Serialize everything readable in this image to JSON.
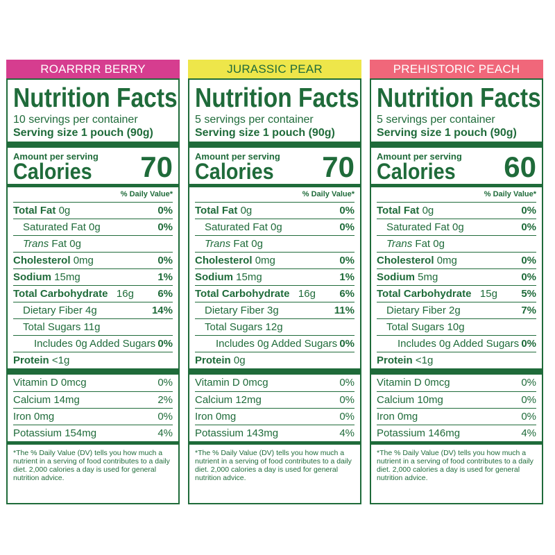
{
  "colors": {
    "green": "#1f6b3a",
    "berry": "#d63d8f",
    "pear": "#eee64a",
    "peach": "#f0677a"
  },
  "panels": [
    {
      "flavor": "ROARRRR BERRY",
      "title": "Nutrition Facts",
      "servings": "10 servings per container",
      "serving_size": "Serving size 1 pouch (90g)",
      "amount_per_serving": "Amount per serving",
      "calories_label": "Calories",
      "calories": "70",
      "dv_header": "% Daily Value*",
      "total_fat": {
        "label": "Total Fat",
        "amount": "0g",
        "dv": "0%"
      },
      "saturated_fat": {
        "label": "Saturated Fat 0g",
        "dv": "0%"
      },
      "trans_fat": {
        "label_italic": "Trans",
        "label_rest": " Fat 0g"
      },
      "cholesterol": {
        "label": "Cholesterol",
        "amount": "0mg",
        "dv": "0%"
      },
      "sodium": {
        "label": "Sodium",
        "amount": "15mg",
        "dv": "1%"
      },
      "total_carb": {
        "label": "Total Carbohydrate",
        "amount": "16g",
        "dv": "6%"
      },
      "fiber": {
        "label": "Dietary Fiber 4g",
        "dv": "14%"
      },
      "sugars": {
        "label": "Total Sugars 11g"
      },
      "added_sugars": {
        "label": "Includes 0g Added Sugars",
        "dv": "0%"
      },
      "protein": {
        "label": "Protein",
        "amount": "<1g"
      },
      "vitamin_d": {
        "label": "Vitamin D 0mcg",
        "dv": "0%"
      },
      "calcium": {
        "label": "Calcium 14mg",
        "dv": "2%"
      },
      "iron": {
        "label": "Iron 0mg",
        "dv": "0%"
      },
      "potassium": {
        "label": "Potassium 154mg",
        "dv": "4%"
      },
      "footnote": "*The % Daily Value (DV) tells you how much a nutrient in a serving of food contributes to a daily diet. 2,000 calories a day is used for general nutrition advice."
    },
    {
      "flavor": "JURASSIC PEAR",
      "title": "Nutrition Facts",
      "servings": "5 servings per container",
      "serving_size": "Serving size 1 pouch (90g)",
      "amount_per_serving": "Amount per serving",
      "calories_label": "Calories",
      "calories": "70",
      "dv_header": "% Daily Value*",
      "total_fat": {
        "label": "Total Fat",
        "amount": "0g",
        "dv": "0%"
      },
      "saturated_fat": {
        "label": "Saturated Fat 0g",
        "dv": "0%"
      },
      "trans_fat": {
        "label_italic": "Trans",
        "label_rest": " Fat 0g"
      },
      "cholesterol": {
        "label": "Cholesterol",
        "amount": "0mg",
        "dv": "0%"
      },
      "sodium": {
        "label": "Sodium",
        "amount": "15mg",
        "dv": "1%"
      },
      "total_carb": {
        "label": "Total Carbohydrate",
        "amount": "16g",
        "dv": "6%"
      },
      "fiber": {
        "label": "Dietary Fiber 3g",
        "dv": "11%"
      },
      "sugars": {
        "label": "Total Sugars 12g"
      },
      "added_sugars": {
        "label": "Includes 0g Added Sugars",
        "dv": "0%"
      },
      "protein": {
        "label": "Protein",
        "amount": "0g"
      },
      "vitamin_d": {
        "label": "Vitamin D 0mcg",
        "dv": "0%"
      },
      "calcium": {
        "label": "Calcium 12mg",
        "dv": "0%"
      },
      "iron": {
        "label": "Iron 0mg",
        "dv": "0%"
      },
      "potassium": {
        "label": "Potassium 143mg",
        "dv": "4%"
      },
      "footnote": "*The % Daily Value (DV) tells you how much a nutrient in a serving of food contributes to a daily diet. 2,000 calories a day is used for general nutrition advice."
    },
    {
      "flavor": "PREHISTORIC PEACH",
      "title": "Nutrition Facts",
      "servings": "5 servings per container",
      "serving_size": "Serving size 1 pouch (90g)",
      "amount_per_serving": "Amount per serving",
      "calories_label": "Calories",
      "calories": "60",
      "dv_header": "% Daily Value*",
      "total_fat": {
        "label": "Total Fat",
        "amount": "0g",
        "dv": "0%"
      },
      "saturated_fat": {
        "label": "Saturated Fat 0g",
        "dv": "0%"
      },
      "trans_fat": {
        "label_italic": "Trans",
        "label_rest": " Fat 0g"
      },
      "cholesterol": {
        "label": "Cholesterol",
        "amount": "0mg",
        "dv": "0%"
      },
      "sodium": {
        "label": "Sodium",
        "amount": "5mg",
        "dv": "0%"
      },
      "total_carb": {
        "label": "Total Carbohydrate",
        "amount": "15g",
        "dv": "5%"
      },
      "fiber": {
        "label": "Dietary Fiber 2g",
        "dv": "7%"
      },
      "sugars": {
        "label": "Total Sugars 10g"
      },
      "added_sugars": {
        "label": "Includes 0g Added Sugars",
        "dv": "0%"
      },
      "protein": {
        "label": "Protein",
        "amount": "<1g"
      },
      "vitamin_d": {
        "label": "Vitamin D 0mcg",
        "dv": "0%"
      },
      "calcium": {
        "label": "Calcium 10mg",
        "dv": "0%"
      },
      "iron": {
        "label": "Iron 0mg",
        "dv": "0%"
      },
      "potassium": {
        "label": "Potassium 146mg",
        "dv": "4%"
      },
      "footnote": "*The % Daily Value (DV) tells you how much a nutrient in a serving of food contributes to a daily diet. 2,000 calories a day is used for general nutrition advice."
    }
  ]
}
